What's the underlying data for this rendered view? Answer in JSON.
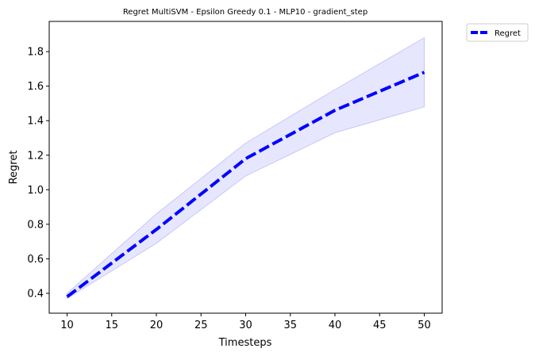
{
  "chart_data": {
    "type": "line",
    "title": "Regret MultiSVM - Epsilon Greedy 0.1 - MLP10 - gradient_step",
    "xlabel": "Timesteps",
    "ylabel": "Regret",
    "x": [
      10,
      20,
      30,
      40,
      50
    ],
    "series": [
      {
        "name": "Regret",
        "values": [
          0.38,
          0.77,
          1.18,
          1.46,
          1.68
        ],
        "lower": [
          0.37,
          0.69,
          1.08,
          1.33,
          1.48
        ],
        "upper": [
          0.4,
          0.86,
          1.27,
          1.58,
          1.88
        ],
        "color": "#0000ff",
        "band_color": "#e6e6ff",
        "band_edge_color": "#c8c8f5",
        "line_style": "dashed"
      }
    ],
    "xlim": [
      8,
      52
    ],
    "ylim": [
      0.285,
      1.975
    ],
    "xticks": [
      10,
      15,
      20,
      25,
      30,
      35,
      40,
      45,
      50
    ],
    "yticks": [
      0.4,
      0.6,
      0.8,
      1.0,
      1.2,
      1.4,
      1.6,
      1.8
    ],
    "ytick_labels": [
      "0.4",
      "0.6",
      "0.8",
      "1.0",
      "1.2",
      "1.4",
      "1.6",
      "1.8"
    ],
    "grid": false,
    "legend": {
      "entries": [
        "Regret"
      ],
      "placement": "outside-top-right"
    }
  }
}
